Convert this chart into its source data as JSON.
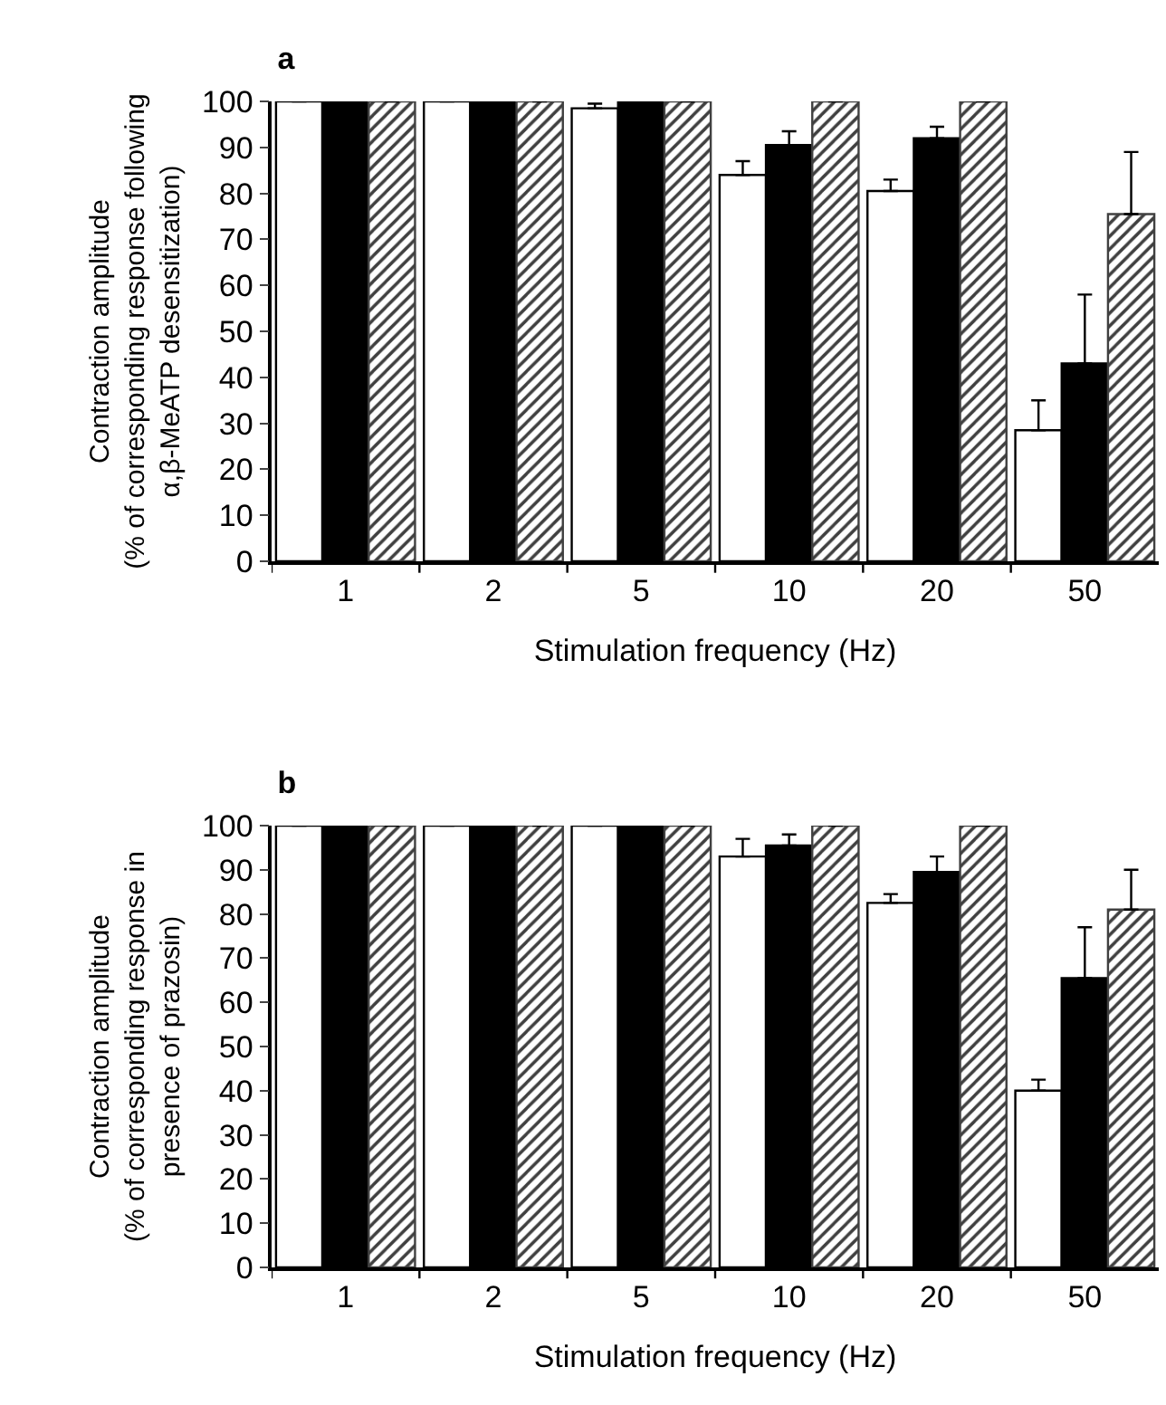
{
  "chart_data": [
    {
      "type": "bar",
      "title": "a",
      "xlabel": "Stimulation frequency (Hz)",
      "ylabel": "Contraction amplitude\n(% of corresponding response following\nα,β-MeATP desensitization)",
      "categories": [
        "1",
        "2",
        "5",
        "10",
        "20",
        "50"
      ],
      "ylim": [
        0,
        100
      ],
      "yticks": [
        0,
        10,
        20,
        30,
        40,
        50,
        60,
        70,
        80,
        90,
        100
      ],
      "series": [
        {
          "color": "#ffffff",
          "values": [
            100,
            100,
            98.5,
            84,
            80.5,
            28.5
          ],
          "errors": [
            null,
            null,
            [
              98.5,
              99.5
            ],
            [
              84,
              87
            ],
            [
              80.5,
              83
            ],
            [
              28.5,
              35
            ]
          ]
        },
        {
          "color": "#000000",
          "values": [
            100,
            100,
            100,
            90.5,
            92,
            43
          ],
          "errors": [
            null,
            null,
            null,
            [
              90.5,
              93.5
            ],
            [
              92,
              94.5
            ],
            [
              43,
              58
            ]
          ]
        },
        {
          "color": "#404040",
          "values": [
            100,
            100,
            100,
            100,
            100,
            75.5
          ],
          "errors": [
            null,
            null,
            null,
            null,
            null,
            [
              75.5,
              89
            ]
          ]
        }
      ]
    },
    {
      "type": "bar",
      "title": "b",
      "xlabel": "Stimulation frequency (Hz)",
      "ylabel": "Contraction amplitude\n(% of corresponding response in\npresence of prazosin)",
      "categories": [
        "1",
        "2",
        "5",
        "10",
        "20",
        "50"
      ],
      "ylim": [
        0,
        100
      ],
      "yticks": [
        0,
        10,
        20,
        30,
        40,
        50,
        60,
        70,
        80,
        90,
        100
      ],
      "series": [
        {
          "color": "#ffffff",
          "values": [
            100,
            100,
            100,
            93,
            82.5,
            40
          ],
          "errors": [
            null,
            null,
            null,
            [
              93,
              97
            ],
            [
              82.5,
              84.5
            ],
            [
              40,
              42.5
            ]
          ]
        },
        {
          "color": "#000000",
          "values": [
            100,
            100,
            100,
            95.5,
            89.5,
            65.5
          ],
          "errors": [
            null,
            null,
            null,
            [
              95.5,
              98
            ],
            [
              89.5,
              93
            ],
            [
              65.5,
              77
            ]
          ]
        },
        {
          "color": "#404040",
          "values": [
            100,
            100,
            100,
            100,
            100,
            81
          ],
          "errors": [
            null,
            null,
            null,
            null,
            null,
            [
              81,
              90
            ]
          ]
        }
      ]
    }
  ]
}
